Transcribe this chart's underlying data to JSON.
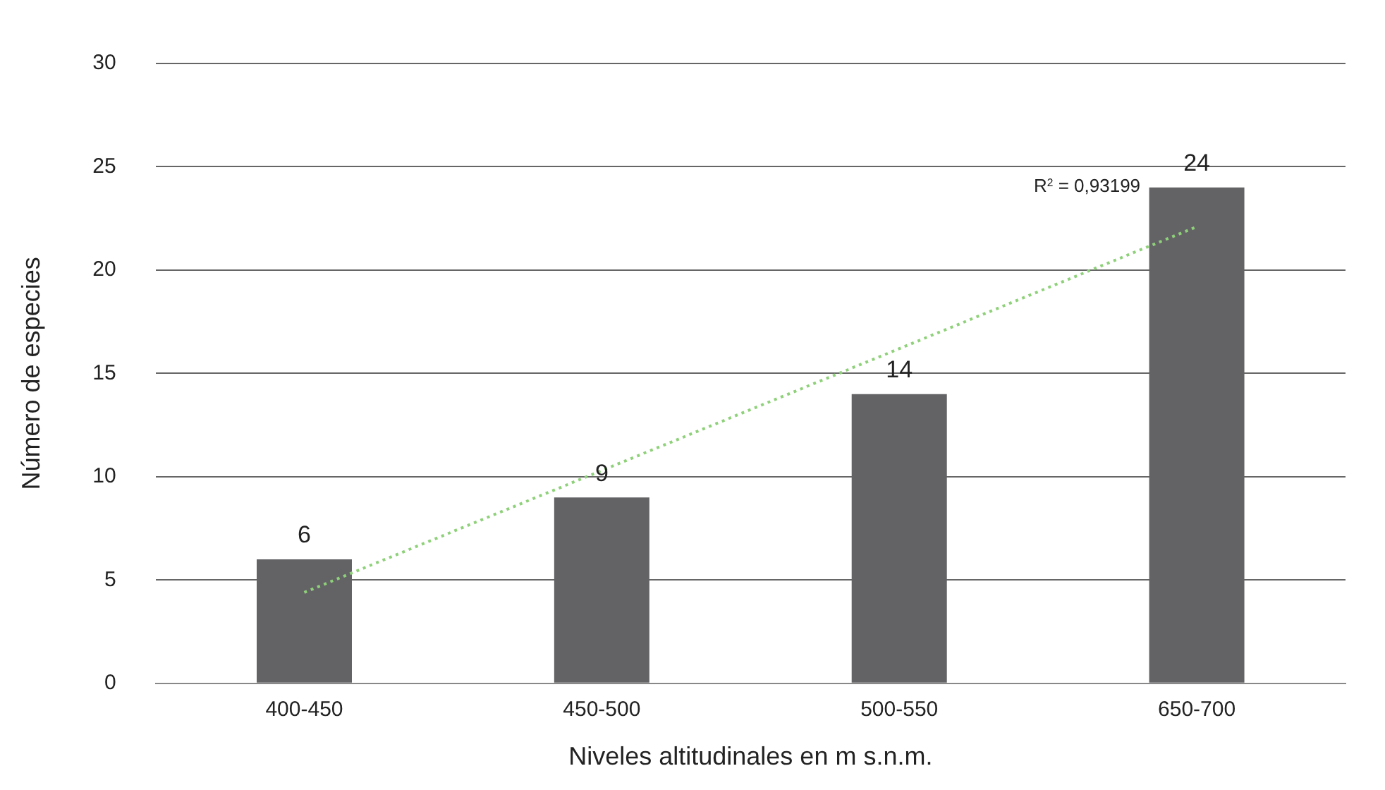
{
  "chart_data": {
    "type": "bar",
    "xlabel": "Niveles altitudinales en m s.n.m.",
    "ylabel": "Número de especies",
    "categories": [
      "400-450",
      "450-500",
      "500-550",
      "650-700"
    ],
    "series": [
      {
        "color": "#636366",
        "values": [
          6,
          9,
          14,
          24
        ],
        "value_labels": [
          "6",
          "9",
          "14",
          "24"
        ]
      },
      {
        "type": "line",
        "color": "#8fd17a",
        "x": [
          "400-450",
          "650-700"
        ],
        "values": [
          4.4,
          22.1
        ],
        "line_style": "dotted",
        "marker": "none"
      }
    ],
    "annotations": [
      "R$^{2}$ = 0,93199"
    ],
    "ylim": [
      0,
      30
    ],
    "yticks": [
      0,
      5,
      10,
      15,
      20,
      25,
      30
    ],
    "grid": "y",
    "legend": false
  }
}
